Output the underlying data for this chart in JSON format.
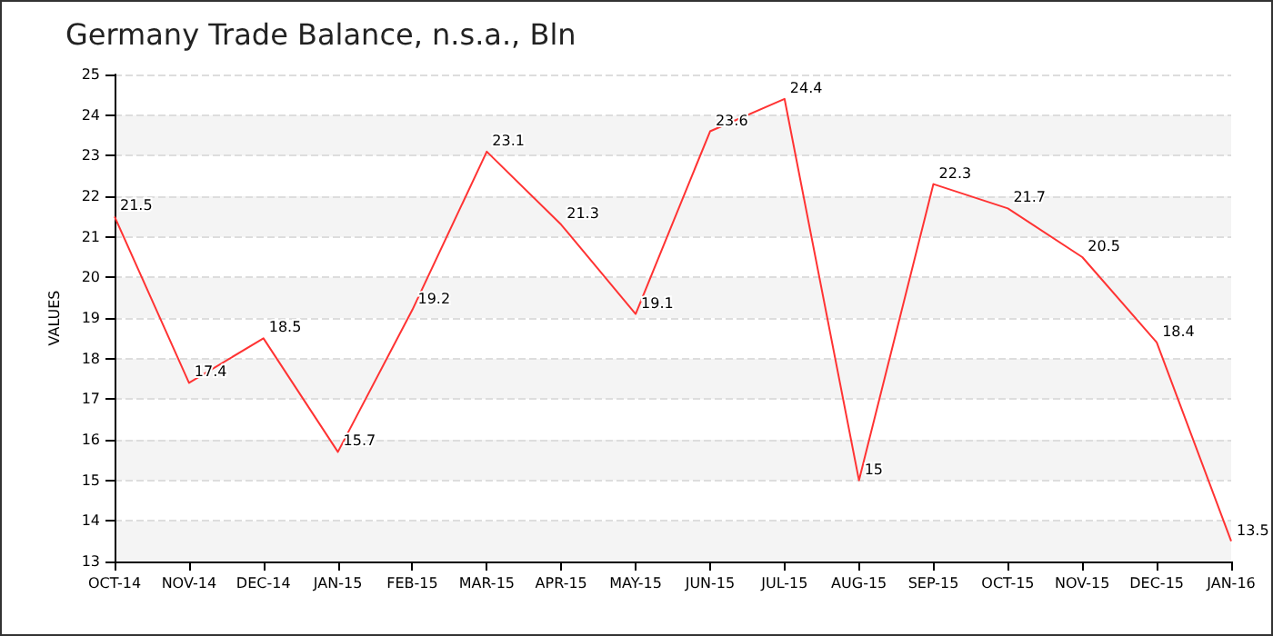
{
  "chart_data": {
    "type": "line",
    "title": "Germany Trade Balance, n.s.a., Bln",
    "ylabel": "VALUES",
    "categories": [
      "OCT-14",
      "NOV-14",
      "DEC-14",
      "JAN-15",
      "FEB-15",
      "MAR-15",
      "APR-15",
      "MAY-15",
      "JUN-15",
      "JUL-15",
      "AUG-15",
      "SEP-15",
      "OCT-15",
      "NOV-15",
      "DEC-15",
      "JAN-16"
    ],
    "series": [
      {
        "color": "#ff3333",
        "values": [
          21.5,
          17.4,
          18.5,
          15.7,
          19.2,
          23.1,
          21.3,
          19.1,
          23.6,
          24.4,
          15,
          22.3,
          21.7,
          20.5,
          18.4,
          13.5
        ]
      }
    ],
    "ylim": [
      13,
      25
    ],
    "yticks": [
      13,
      14,
      15,
      16,
      17,
      18,
      19,
      20,
      21,
      22,
      23,
      24,
      25
    ],
    "grid": "y",
    "data_labels": true,
    "marker": "none",
    "line_style": "solid"
  }
}
